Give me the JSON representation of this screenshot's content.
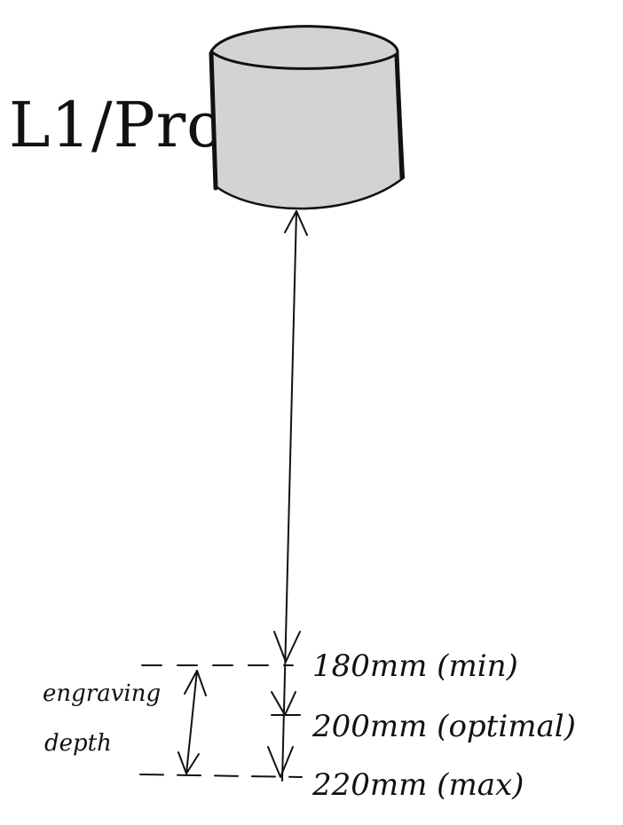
{
  "device": {
    "label": "L1/Pro"
  },
  "distances": [
    {
      "label": "180mm (min)"
    },
    {
      "label": "200mm (optimal)"
    },
    {
      "label": "220mm (max)"
    }
  ],
  "engraving_depth": {
    "line1": "engraving",
    "line2": "depth"
  }
}
